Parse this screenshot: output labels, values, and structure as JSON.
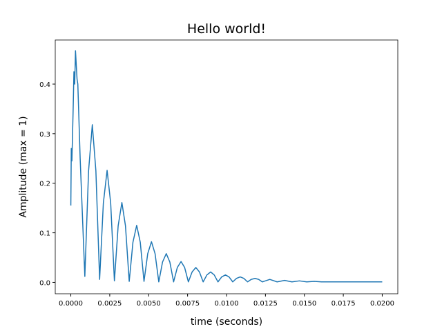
{
  "chart_data": {
    "type": "line",
    "title": "Hello world!",
    "x_label": "time (seconds)",
    "y_label": "Amplitude (max = 1)",
    "x": [
      0,
      3e-05,
      7e-05,
      0.00015,
      0.0002,
      0.00025,
      0.0003,
      0.0004,
      0.00045,
      0.0006,
      0.0009,
      0.00114,
      0.00138,
      0.00161,
      0.00185,
      0.00209,
      0.00233,
      0.00256,
      0.0028,
      0.00304,
      0.00328,
      0.00351,
      0.00375,
      0.00399,
      0.00423,
      0.00446,
      0.0047,
      0.00494,
      0.00518,
      0.00541,
      0.00565,
      0.00589,
      0.00613,
      0.00636,
      0.0066,
      0.00684,
      0.00708,
      0.00731,
      0.00755,
      0.00779,
      0.00803,
      0.00826,
      0.0085,
      0.00874,
      0.00898,
      0.00921,
      0.00945,
      0.00969,
      0.00993,
      0.01016,
      0.0104,
      0.01064,
      0.01088,
      0.01111,
      0.01135,
      0.01159,
      0.01183,
      0.01206,
      0.0123,
      0.01278,
      0.01325,
      0.01373,
      0.0142,
      0.01468,
      0.01515,
      0.01563,
      0.0161,
      0.017,
      0.018,
      0.019,
      0.02
    ],
    "series": [
      {
        "name": "amplitude",
        "color": "#1f77b4",
        "values": [
          0.155,
          0.27,
          0.245,
          0.35,
          0.425,
          0.4,
          0.467,
          0.41,
          0.4,
          0.25,
          0.012,
          0.225,
          0.318,
          0.225,
          0.006,
          0.16,
          0.226,
          0.16,
          0.003,
          0.114,
          0.161,
          0.114,
          0.002,
          0.081,
          0.115,
          0.081,
          0.002,
          0.058,
          0.082,
          0.058,
          0.001,
          0.041,
          0.058,
          0.041,
          0.001,
          0.03,
          0.042,
          0.03,
          0.001,
          0.021,
          0.03,
          0.021,
          0.001,
          0.015,
          0.021,
          0.015,
          0.001,
          0.011,
          0.015,
          0.011,
          0.001,
          0.008,
          0.011,
          0.008,
          0.001,
          0.006,
          0.008,
          0.006,
          0.001,
          0.006,
          0.001,
          0.004,
          0.001,
          0.003,
          0.001,
          0.002,
          0.001,
          0.001,
          0.001,
          0.001,
          0.001
        ]
      }
    ],
    "xlim": [
      -0.001,
      0.021
    ],
    "ylim": [
      -0.023,
      0.489
    ],
    "xticks": [
      {
        "value": 0,
        "label": "0.0000"
      },
      {
        "value": 0.0025,
        "label": "0.0025"
      },
      {
        "value": 0.005,
        "label": "0.0050"
      },
      {
        "value": 0.0075,
        "label": "0.0075"
      },
      {
        "value": 0.01,
        "label": "0.0100"
      },
      {
        "value": 0.0125,
        "label": "0.0125"
      },
      {
        "value": 0.015,
        "label": "0.0150"
      },
      {
        "value": 0.0175,
        "label": "0.0175"
      },
      {
        "value": 0.02,
        "label": "0.0200"
      }
    ],
    "yticks": [
      {
        "value": 0,
        "label": "0.0"
      },
      0.1,
      0.2,
      0.3,
      0.4
    ]
  }
}
